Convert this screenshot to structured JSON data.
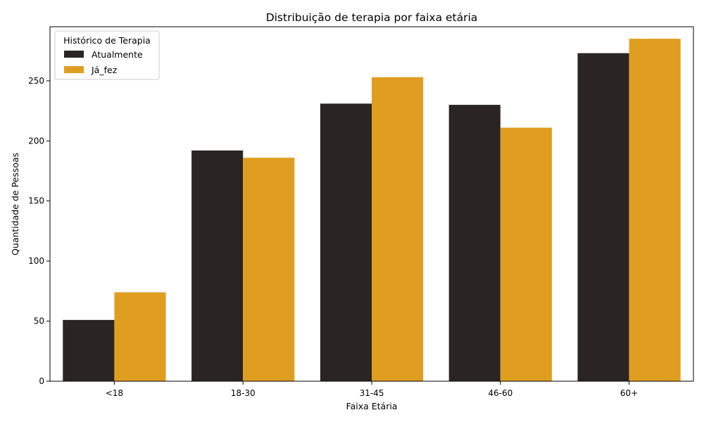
{
  "chart_data": {
    "type": "bar",
    "title": "Distribuição de terapia por faixa etária",
    "xlabel": "Faixa Etária",
    "ylabel": "Quantidade de Pessoas",
    "categories": [
      "<18",
      "18-30",
      "31-45",
      "46-60",
      "60+"
    ],
    "series": [
      {
        "name": "Atualmente",
        "color": "#2a2522",
        "values": [
          51,
          192,
          231,
          230,
          273
        ]
      },
      {
        "name": "Já_fez",
        "color": "#e09e20",
        "values": [
          74,
          186,
          253,
          211,
          285
        ]
      }
    ],
    "ylim": [
      0,
      295
    ],
    "yticks": [
      0,
      50,
      100,
      150,
      200,
      250
    ],
    "grid": false,
    "legend": {
      "title": "Histórico de Terapia",
      "placement": "top-left"
    }
  }
}
